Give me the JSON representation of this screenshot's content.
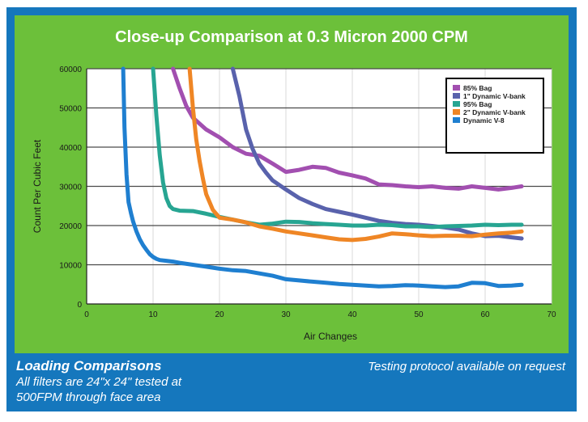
{
  "chart_data": {
    "type": "line",
    "title": "Close-up Comparison at 0.3 Micron 2000 CPM",
    "xlabel": "Air Changes",
    "ylabel": "Count Per Cubic Feet",
    "xlim": [
      0,
      70
    ],
    "ylim": [
      0,
      60000
    ],
    "xticks": [
      0,
      10,
      20,
      30,
      40,
      50,
      60,
      70
    ],
    "yticks": [
      0,
      10000,
      20000,
      30000,
      40000,
      50000,
      60000
    ],
    "legend_position": "top-right",
    "series": [
      {
        "name": "85% Bag",
        "color": "#a24fb0",
        "x": [
          13,
          14,
          15,
          16,
          18,
          20,
          22,
          24,
          26,
          28,
          30,
          32,
          34,
          36,
          38,
          40,
          42,
          44,
          46,
          48,
          50,
          52,
          54,
          56,
          58,
          60,
          62,
          64,
          65.5
        ],
        "y": [
          60000,
          55000,
          50500,
          47500,
          44500,
          42500,
          40000,
          38300,
          37800,
          35800,
          33700,
          34200,
          35000,
          34700,
          33500,
          32800,
          32000,
          30500,
          30300,
          30000,
          29800,
          30000,
          29600,
          29400,
          30000,
          29600,
          29200,
          29600,
          30000
        ]
      },
      {
        "name": "1\" Dynamic V-bank",
        "color": "#5962ac",
        "x": [
          22,
          23,
          24,
          25,
          26,
          27,
          28,
          30,
          32,
          34,
          36,
          38,
          40,
          42,
          44,
          46,
          48,
          50,
          52,
          54,
          56,
          58,
          60,
          62,
          64,
          65.5
        ],
        "y": [
          60000,
          53000,
          44500,
          39500,
          35800,
          33500,
          31500,
          29200,
          27000,
          25500,
          24200,
          23500,
          22800,
          22000,
          21200,
          20700,
          20400,
          20200,
          19900,
          19500,
          19000,
          18000,
          17300,
          17400,
          17000,
          16700
        ]
      },
      {
        "name": "95% Bag",
        "color": "#27a592",
        "x": [
          10,
          10.5,
          11,
          11.5,
          12,
          12.5,
          13,
          14,
          16,
          18,
          20,
          22,
          24,
          26,
          28,
          30,
          32,
          34,
          36,
          38,
          40,
          42,
          44,
          46,
          48,
          50,
          52,
          54,
          56,
          58,
          60,
          62,
          64,
          65.5
        ],
        "y": [
          60000,
          48000,
          38000,
          31000,
          27000,
          25000,
          24200,
          23800,
          23700,
          23000,
          22200,
          21500,
          20800,
          20200,
          20500,
          21000,
          20900,
          20600,
          20400,
          20200,
          20000,
          20000,
          20200,
          20100,
          19800,
          19800,
          19600,
          19800,
          19900,
          20000,
          20200,
          20100,
          20200,
          20200
        ]
      },
      {
        "name": "2\" Dynamic V-bank",
        "color": "#ef8625",
        "x": [
          15.5,
          16,
          16.5,
          17,
          17.5,
          18,
          19,
          20,
          22,
          24,
          26,
          28,
          30,
          32,
          34,
          36,
          38,
          40,
          42,
          44,
          46,
          48,
          50,
          52,
          54,
          56,
          58,
          60,
          62,
          64,
          65.5
        ],
        "y": [
          60000,
          50000,
          42000,
          36500,
          32000,
          28000,
          24000,
          22000,
          21500,
          20800,
          19800,
          19200,
          18500,
          18000,
          17500,
          17000,
          16500,
          16300,
          16600,
          17200,
          18000,
          17800,
          17500,
          17300,
          17400,
          17400,
          17300,
          17700,
          18000,
          18200,
          18500
        ]
      },
      {
        "name": "Dynamic V-8",
        "color": "#1f7fd0",
        "x": [
          5.5,
          5.7,
          6,
          6.3,
          6.7,
          7,
          7.5,
          8,
          8.5,
          9,
          9.5,
          10,
          10.5,
          11,
          12,
          13,
          14,
          16,
          18,
          20,
          22,
          24,
          26,
          28,
          30,
          32,
          34,
          36,
          38,
          40,
          42,
          44,
          46,
          48,
          50,
          52,
          54,
          56,
          58,
          60,
          62,
          64,
          65.5
        ],
        "y": [
          60000,
          45000,
          33000,
          26000,
          23000,
          21000,
          18500,
          16500,
          15000,
          13800,
          12700,
          12000,
          11500,
          11200,
          11000,
          10800,
          10500,
          10000,
          9500,
          9000,
          8600,
          8400,
          7800,
          7200,
          6300,
          6000,
          5700,
          5400,
          5100,
          4900,
          4700,
          4500,
          4600,
          4800,
          4700,
          4500,
          4300,
          4500,
          5400,
          5300,
          4600,
          4700,
          4900
        ]
      }
    ]
  },
  "footer": {
    "left_title": "Loading Comparisons",
    "left_line1": "All filters are 24\"x 24\" tested at",
    "left_line2": "500FPM through face area",
    "right_text": "Testing protocol available on request"
  }
}
